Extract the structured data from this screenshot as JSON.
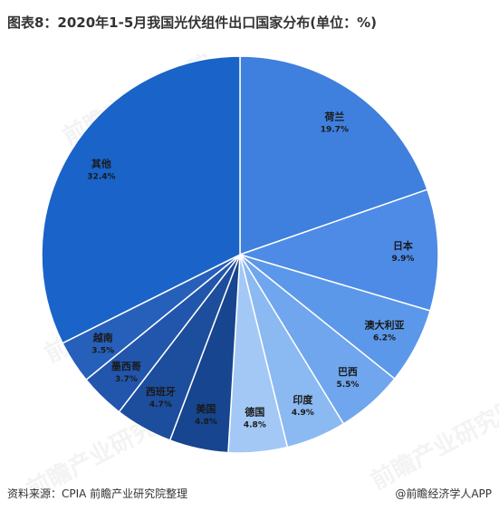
{
  "title": "图表8：2020年1-5月我国光伏组件出口国家分布(单位：%)",
  "chart_data": {
    "type": "pie",
    "title": "图表8：2020年1-5月我国光伏组件出口国家分布(单位：%)",
    "unit": "%",
    "slices": [
      {
        "label": "荷兰",
        "value": 19.7,
        "display": "19.7%",
        "color": "#3f7fdd"
      },
      {
        "label": "日本",
        "value": 9.9,
        "display": "9.9%",
        "color": "#4d8be6"
      },
      {
        "label": "澳大利亚",
        "value": 6.2,
        "display": "6.2%",
        "color": "#5b98ea"
      },
      {
        "label": "巴西",
        "value": 5.5,
        "display": "5.5%",
        "color": "#6fa6ee"
      },
      {
        "label": "印度",
        "value": 4.9,
        "display": "4.9%",
        "color": "#8bb9f2"
      },
      {
        "label": "德国",
        "value": 4.8,
        "display": "4.8%",
        "color": "#a3c8f5"
      },
      {
        "label": "美国",
        "value": 4.8,
        "display": "4.8%",
        "color": "#17458f"
      },
      {
        "label": "西班牙",
        "value": 4.7,
        "display": "4.7%",
        "color": "#1d4d9d"
      },
      {
        "label": "墨西哥",
        "value": 3.7,
        "display": "3.7%",
        "color": "#2256ac"
      },
      {
        "label": "越南",
        "value": 3.5,
        "display": "3.5%",
        "color": "#2760bb"
      },
      {
        "label": "其他",
        "value": 32.4,
        "display": "32.4%",
        "color": "#1a63c8"
      }
    ]
  },
  "footer": {
    "source": "资料来源：CPIA 前瞻产业研究院整理",
    "brand": "@前瞻经济学人APP"
  },
  "watermark_text": "前瞻产业研究院"
}
